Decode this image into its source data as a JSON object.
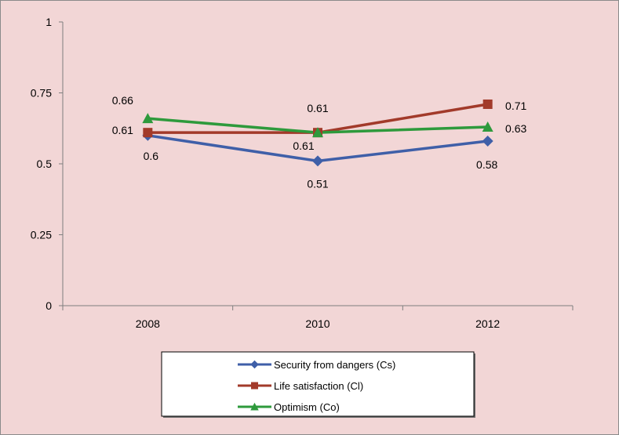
{
  "chart_data": {
    "type": "line",
    "title": "",
    "xlabel": "",
    "ylabel": "",
    "categories": [
      "2008",
      "2010",
      "2012"
    ],
    "ylim": [
      0,
      1
    ],
    "yticks": [
      0,
      0.25,
      0.5,
      0.75,
      1
    ],
    "ytick_labels": [
      "0",
      "0.25",
      "0.5",
      "0.75",
      "1"
    ],
    "grid": false,
    "legend_position": "bottom",
    "series": [
      {
        "name": "Security from dangers (Cs)",
        "values": [
          0.6,
          0.51,
          0.58
        ],
        "labels": [
          "0.6",
          "0.51",
          "0.58"
        ],
        "color": "#3f5fa8",
        "marker": "diamond"
      },
      {
        "name": "Life satisfaction (Cl)",
        "values": [
          0.61,
          0.61,
          0.71
        ],
        "labels": [
          "0.61",
          "0.61",
          "0.71"
        ],
        "color": "#a23a2a",
        "marker": "square"
      },
      {
        "name": "Optimism (Co)",
        "values": [
          0.66,
          0.61,
          0.63
        ],
        "labels": [
          "0.66",
          "0.61",
          "0.63"
        ],
        "color": "#2e9a3c",
        "marker": "triangle"
      }
    ]
  }
}
